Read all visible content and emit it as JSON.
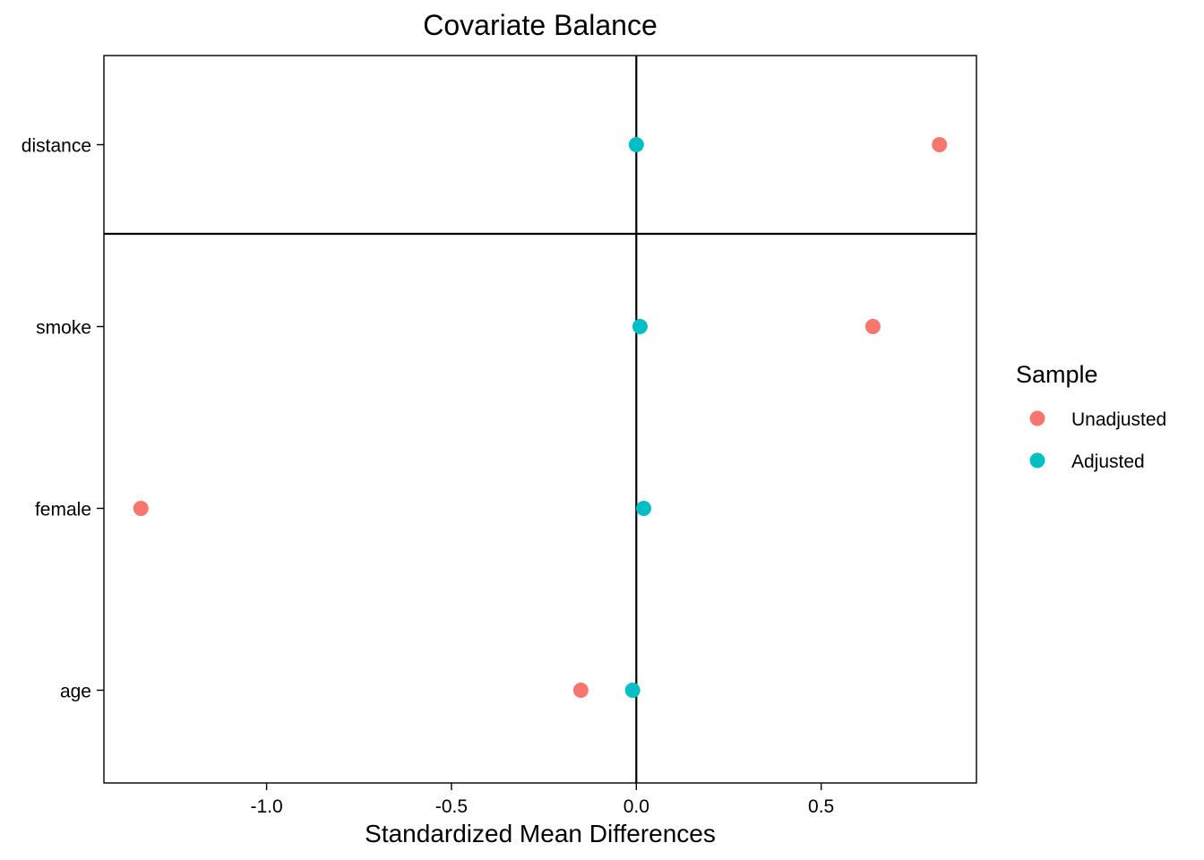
{
  "chart_data": {
    "type": "scatter",
    "title": "Covariate Balance",
    "xlabel": "Standardized Mean Differences",
    "ylabel": "",
    "xlim": [
      -1.44,
      0.92
    ],
    "x_ticks": [
      -1.0,
      -0.5,
      0.0,
      0.5
    ],
    "x_tick_labels": [
      "-1.0",
      "-0.5",
      "0.0",
      "0.5"
    ],
    "categories": [
      "distance",
      "smoke",
      "female",
      "age"
    ],
    "reference_lines": {
      "vertical_at_x": 0,
      "horizontal_separator": "between distance and smoke"
    },
    "grid": false,
    "legend": {
      "title": "Sample",
      "position": "right"
    },
    "series": [
      {
        "name": "Unadjusted",
        "color": "#F8766D",
        "values": [
          {
            "category": "distance",
            "x": 0.82
          },
          {
            "category": "smoke",
            "x": 0.64
          },
          {
            "category": "female",
            "x": -1.34
          },
          {
            "category": "age",
            "x": -0.15
          }
        ]
      },
      {
        "name": "Adjusted",
        "color": "#00BFC4",
        "values": [
          {
            "category": "distance",
            "x": 0.0
          },
          {
            "category": "smoke",
            "x": 0.01
          },
          {
            "category": "female",
            "x": 0.02
          },
          {
            "category": "age",
            "x": -0.01
          }
        ]
      }
    ]
  }
}
